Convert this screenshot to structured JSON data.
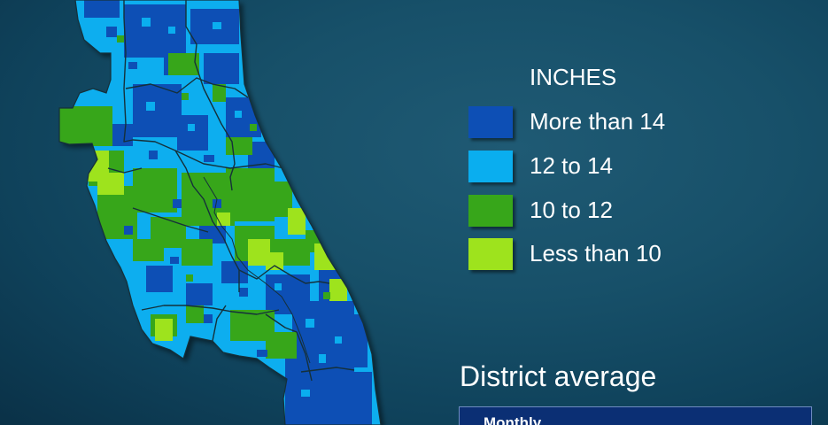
{
  "title_fragment": "",
  "legend": {
    "title": "INCHES",
    "items": [
      {
        "label": "More than 14",
        "color": "#0d4fb5"
      },
      {
        "label": "12 to 14",
        "color": "#0aaeef"
      },
      {
        "label": "10 to 12",
        "color": "#37a61a"
      },
      {
        "label": "Less than 10",
        "color": "#9ee31d"
      }
    ]
  },
  "district": {
    "title": "District average",
    "monthly_label": "Monthly"
  },
  "map": {
    "water_color": "#1a5a78",
    "outline_color": "#15303a",
    "category_colors": {
      "very_high": "#0d4fb5",
      "high": "#0aaeef",
      "medium": "#37a61a",
      "low": "#9ee31d"
    }
  }
}
